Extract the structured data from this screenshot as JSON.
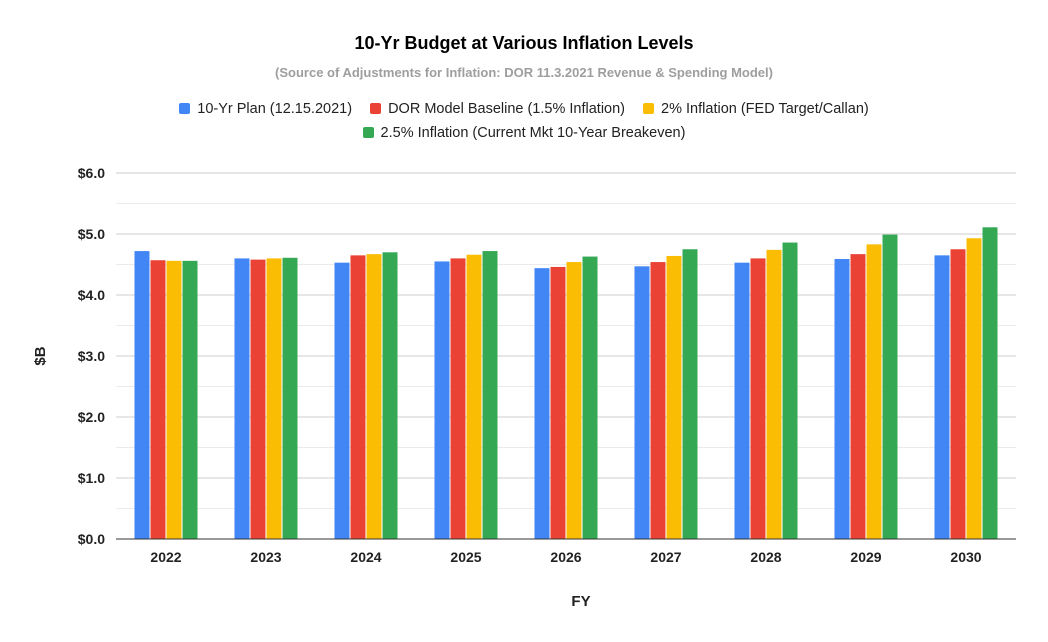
{
  "chart_data": {
    "type": "bar",
    "title": "10-Yr Budget at Various Inflation Levels",
    "subtitle": "(Source of Adjustments for Inflation: DOR 11.3.2021 Revenue & Spending Model)",
    "xlabel": "FY",
    "ylabel": "$B",
    "ylim": [
      0,
      6
    ],
    "yticks": [
      "$0.0",
      "$1.0",
      "$2.0",
      "$3.0",
      "$4.0",
      "$5.0",
      "$6.0"
    ],
    "grid": true,
    "legend_position": "top",
    "categories": [
      "2022",
      "2023",
      "2024",
      "2025",
      "2026",
      "2027",
      "2028",
      "2029",
      "2030"
    ],
    "series": [
      {
        "name": "10-Yr Plan (12.15.2021)",
        "color": "#4285f4",
        "values": [
          4.72,
          4.6,
          4.53,
          4.55,
          4.44,
          4.47,
          4.53,
          4.59,
          4.65
        ]
      },
      {
        "name": "DOR Model Baseline (1.5% Inflation)",
        "color": "#ea4335",
        "values": [
          4.57,
          4.58,
          4.65,
          4.6,
          4.46,
          4.54,
          4.6,
          4.67,
          4.75
        ]
      },
      {
        "name": "2% Inflation (FED Target/Callan)",
        "color": "#fbbc04",
        "values": [
          4.56,
          4.6,
          4.67,
          4.66,
          4.54,
          4.64,
          4.74,
          4.83,
          4.93
        ]
      },
      {
        "name": "2.5% Inflation (Current Mkt 10-Year Breakeven)",
        "color": "#34a853",
        "values": [
          4.56,
          4.61,
          4.7,
          4.72,
          4.63,
          4.75,
          4.86,
          4.99,
          5.11
        ]
      }
    ]
  }
}
